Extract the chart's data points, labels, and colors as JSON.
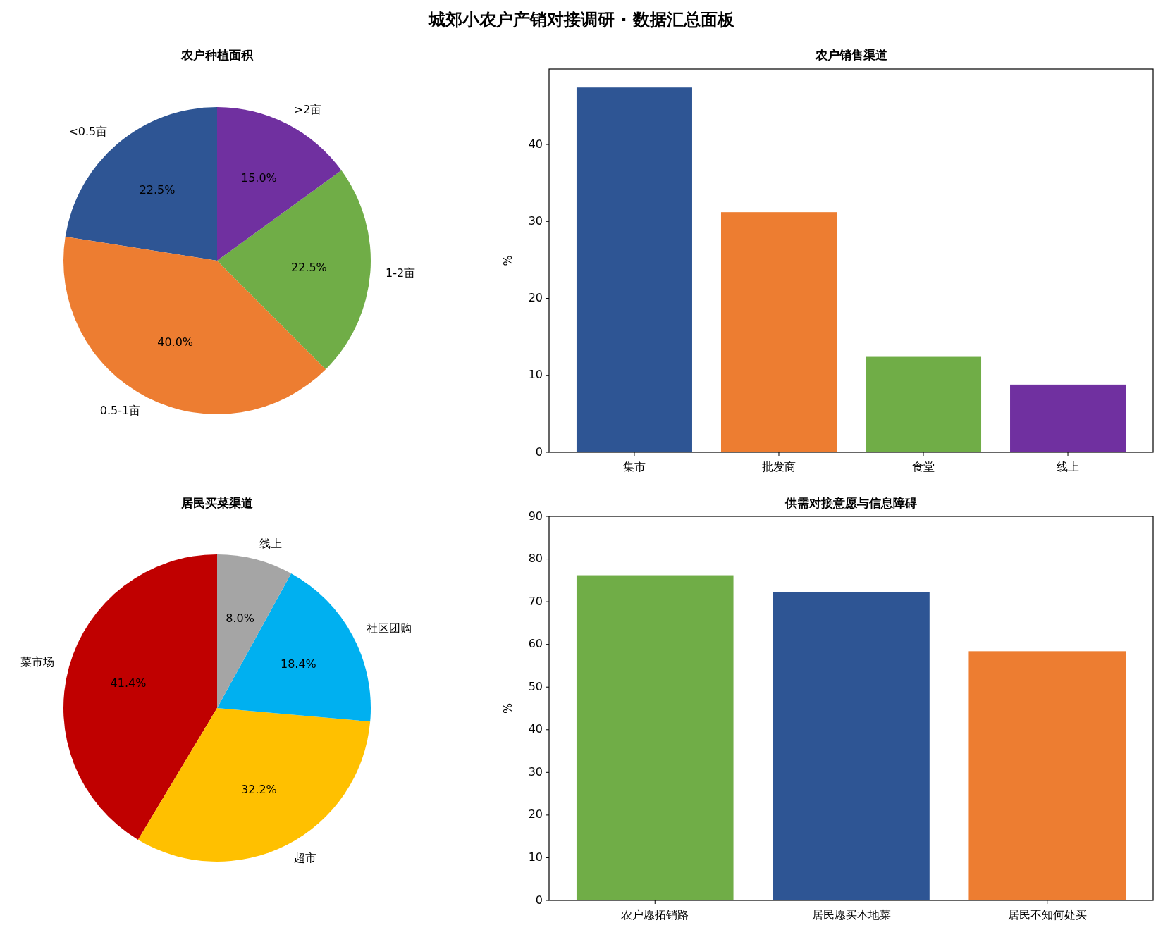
{
  "chart_data": [
    {
      "type": "pie",
      "title": "农户种植面积",
      "categories": [
        "<0.5亩",
        "0.5-1亩",
        "1-2亩",
        ">2亩"
      ],
      "values": [
        22.5,
        40.0,
        22.5,
        15.0
      ],
      "colors": [
        "#2e5594",
        "#ed7d31",
        "#70ad47",
        "#7030a0"
      ],
      "value_labels": [
        "22.5%",
        "40.0%",
        "22.5%",
        "15.0%"
      ]
    },
    {
      "type": "bar",
      "title": "农户销售渠道",
      "ylabel": "%",
      "categories": [
        "集市",
        "批发商",
        "食堂",
        "线上"
      ],
      "values": [
        47.4,
        31.2,
        12.4,
        8.8
      ],
      "colors": [
        "#2e5594",
        "#ed7d31",
        "#70ad47",
        "#7030a0"
      ],
      "ylim": [
        0,
        49.8
      ],
      "yticks": [
        0,
        10,
        20,
        30,
        40
      ]
    },
    {
      "type": "pie",
      "title": "居民买菜渠道",
      "categories": [
        "菜市场",
        "超市",
        "社区团购",
        "线上"
      ],
      "values": [
        41.4,
        32.2,
        18.4,
        8.0
      ],
      "colors": [
        "#c00000",
        "#ffc000",
        "#00b0f0",
        "#a5a5a5"
      ],
      "value_labels": [
        "41.4%",
        "32.2%",
        "18.4%",
        "8.0%"
      ]
    },
    {
      "type": "bar",
      "title": "供需对接意愿与信息障碍",
      "ylabel": "%",
      "categories": [
        "农户愿拓销路",
        "居民愿买本地菜",
        "居民不知何处买"
      ],
      "values": [
        76.2,
        72.3,
        58.4
      ],
      "colors": [
        "#70ad47",
        "#2e5594",
        "#ed7d31"
      ],
      "ylim": [
        0,
        90
      ],
      "yticks": [
        0,
        10,
        20,
        30,
        40,
        50,
        60,
        70,
        80,
        90
      ]
    },
    {
      "type": "other",
      "title": "城郊小农户产销对接调研 · 数据汇总面板"
    }
  ]
}
